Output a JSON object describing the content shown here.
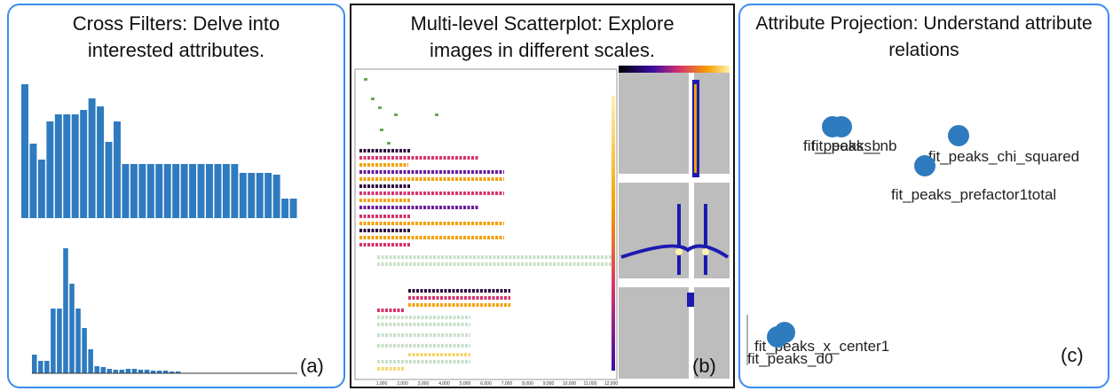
{
  "cross_filters": {
    "title": "Cross Filters: Delve into interested attributes.",
    "histograms": [
      {
        "values": [
          151,
          84,
          66,
          109,
          117,
          117,
          117,
          122,
          135,
          126,
          86,
          109,
          61,
          61,
          61,
          61,
          61,
          61,
          61,
          61,
          61,
          61,
          61,
          61,
          61,
          61,
          51,
          51,
          51,
          51,
          49,
          22,
          22
        ]
      },
      {
        "values": [
          21,
          14,
          14,
          73,
          73,
          141,
          101,
          73,
          51,
          27,
          8,
          7,
          5,
          4,
          4,
          5,
          5,
          4,
          4,
          3,
          3,
          3,
          2,
          2
        ]
      }
    ],
    "tag": "(a)"
  },
  "scatterplot": {
    "title": "Multi-level Scatterplot: Explore images in different scales.",
    "x_tick_labels": [
      "1,000",
      "2,000",
      "3,000",
      "4,000",
      "5,000",
      "6,000",
      "7,000",
      "8,000",
      "9,000",
      "10,000",
      "11,000",
      "12,000"
    ],
    "tag": "(b)"
  },
  "projection": {
    "title": "Attribute Projection: Understand attribute relations",
    "points": [
      {
        "label": "fit_peaks_b"
      },
      {
        "label": "fit_peaks_nb"
      },
      {
        "label": "fit_peaks_chi_squared"
      },
      {
        "label": "fit_peaks_prefactor1total"
      },
      {
        "label": "fit_peaks_x_center1"
      },
      {
        "label": "fit_peaks_d0"
      }
    ],
    "tag": "(c)"
  }
}
